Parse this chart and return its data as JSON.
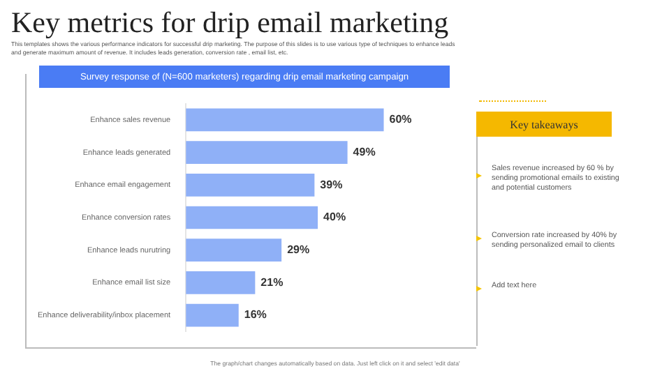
{
  "chart_data": {
    "type": "bar",
    "orientation": "horizontal",
    "title": "Key metrics for drip email marketing",
    "subtitle": "This templates shows the various performance indicators for successful drip marketing. The purpose of this slides is to use various type of techniques to enhance leads and generate maximum amount of revenue. It includes leads generation, conversion rate , email list, etc.",
    "categories": [
      "Enhance sales revenue",
      "Enhance leads generated",
      "Enhance email engagement",
      "Enhance conversion rates",
      "Enhance leads nurutring",
      "Enhance email list size",
      "Enhance deliverability/inbox placement"
    ],
    "values": [
      60,
      49,
      39,
      40,
      29,
      21,
      16
    ],
    "color": "#8fb0f7",
    "data_labels": true,
    "value_labels": [
      "60%",
      "49%",
      "39%",
      "40%",
      "29%",
      "21%",
      "16%"
    ],
    "legend": false,
    "annotations": [
      "Survey response of (N=600 marketers) regarding drip email marketing campaign",
      "Key takeaways",
      "Sales revenue  increased by 60 % by sending promotional emails to existing and potential customers",
      "Conversion rate increased by 40% by sending personalized email to clients",
      "Add text here",
      "The graph/chart changes automatically based on data. Just left click on it and select 'edit data'"
    ]
  }
}
